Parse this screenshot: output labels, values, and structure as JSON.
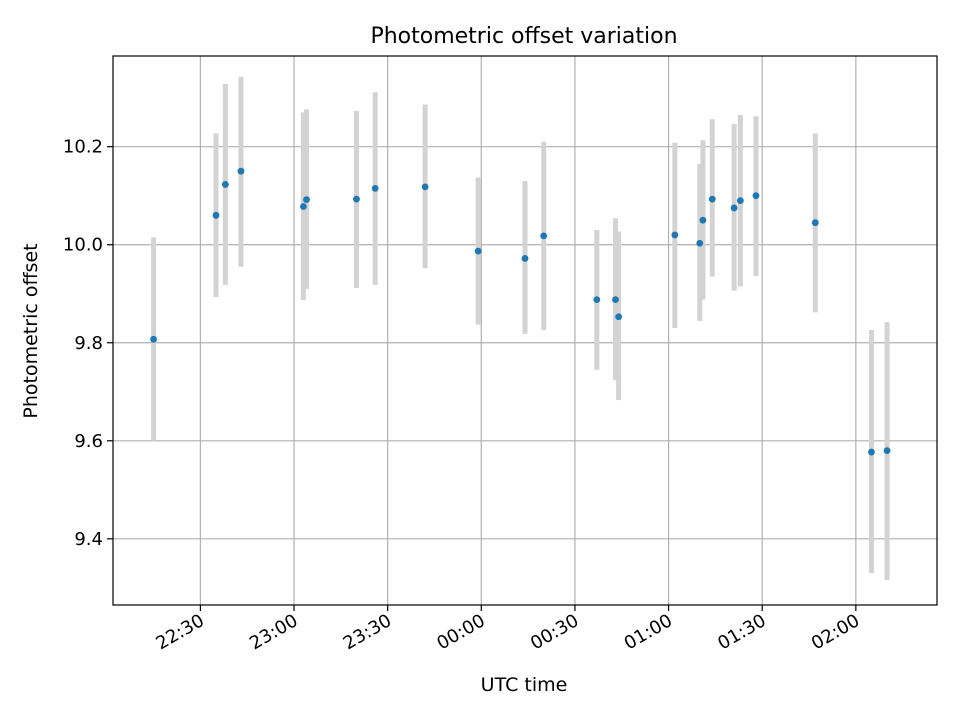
{
  "chart_data": {
    "type": "scatter",
    "title": "Photometric offset variation",
    "xlabel": "UTC time",
    "ylabel": "Photometric offset",
    "x_ticks": [
      "22:30",
      "23:00",
      "23:30",
      "00:00",
      "00:30",
      "01:00",
      "01:30",
      "02:00"
    ],
    "x_tick_minutes": [
      1350,
      1380,
      1410,
      1440,
      1470,
      1500,
      1530,
      1560
    ],
    "xlim_minutes": [
      1322,
      1586
    ],
    "y_ticks": [
      "9.4",
      "9.6",
      "9.8",
      "10.0",
      "10.2"
    ],
    "ylim": [
      9.265,
      10.385
    ],
    "grid": true,
    "colors": {
      "marker": "#1f77b4",
      "errorbar": "#d3d3d3",
      "grid": "#b0b0b0"
    },
    "series": [
      {
        "points": [
          {
            "t": "22:15",
            "y": 9.807,
            "ymin": 9.6,
            "ymax": 10.015
          },
          {
            "t": "22:35",
            "y": 10.06,
            "ymin": 9.893,
            "ymax": 10.227
          },
          {
            "t": "22:38",
            "y": 10.123,
            "ymin": 9.918,
            "ymax": 10.328
          },
          {
            "t": "22:43",
            "y": 10.15,
            "ymin": 9.955,
            "ymax": 10.343
          },
          {
            "t": "23:03",
            "y": 10.078,
            "ymin": 9.887,
            "ymax": 10.27
          },
          {
            "t": "23:04",
            "y": 10.092,
            "ymin": 9.91,
            "ymax": 10.276
          },
          {
            "t": "23:20",
            "y": 10.093,
            "ymin": 9.912,
            "ymax": 10.273
          },
          {
            "t": "23:26",
            "y": 10.115,
            "ymin": 9.918,
            "ymax": 10.311
          },
          {
            "t": "23:42",
            "y": 10.118,
            "ymin": 9.952,
            "ymax": 10.286
          },
          {
            "t": "23:59",
            "y": 9.987,
            "ymin": 9.837,
            "ymax": 10.137
          },
          {
            "t": "00:14",
            "y": 9.972,
            "ymin": 9.818,
            "ymax": 10.13
          },
          {
            "t": "00:20",
            "y": 10.018,
            "ymin": 9.826,
            "ymax": 10.21
          },
          {
            "t": "00:37",
            "y": 9.888,
            "ymin": 9.745,
            "ymax": 10.03
          },
          {
            "t": "00:43",
            "y": 9.888,
            "ymin": 9.724,
            "ymax": 10.054
          },
          {
            "t": "00:44",
            "y": 9.853,
            "ymin": 9.683,
            "ymax": 10.027
          },
          {
            "t": "01:02",
            "y": 10.02,
            "ymin": 9.83,
            "ymax": 10.208
          },
          {
            "t": "01:10",
            "y": 10.003,
            "ymin": 9.844,
            "ymax": 10.165
          },
          {
            "t": "01:11",
            "y": 10.05,
            "ymin": 9.888,
            "ymax": 10.213
          },
          {
            "t": "01:14",
            "y": 10.093,
            "ymin": 9.935,
            "ymax": 10.256
          },
          {
            "t": "01:21",
            "y": 10.075,
            "ymin": 9.906,
            "ymax": 10.246
          },
          {
            "t": "01:23",
            "y": 10.09,
            "ymin": 9.915,
            "ymax": 10.265
          },
          {
            "t": "01:28",
            "y": 10.1,
            "ymin": 9.936,
            "ymax": 10.262
          },
          {
            "t": "01:47",
            "y": 10.045,
            "ymin": 9.862,
            "ymax": 10.227
          },
          {
            "t": "02:05",
            "y": 9.577,
            "ymin": 9.33,
            "ymax": 9.826
          },
          {
            "t": "02:10",
            "y": 9.58,
            "ymin": 9.316,
            "ymax": 9.842
          }
        ]
      }
    ]
  }
}
